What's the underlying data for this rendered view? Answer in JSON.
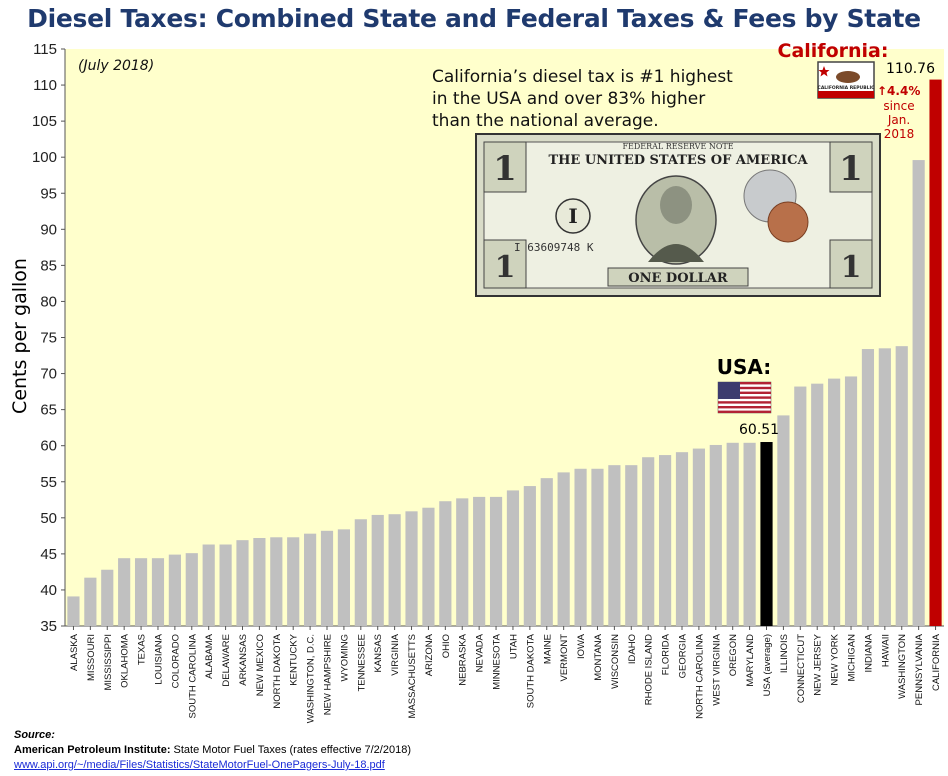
{
  "title": "Diesel Taxes: Combined State and Federal Taxes & Fees by State",
  "colors": {
    "plot_bg": "#ffffcc",
    "bar": "#c0c0c0",
    "usa_bar": "#000000",
    "california_bar": "#c00000",
    "title": "#1f3a6e",
    "ca_text": "#c00000"
  },
  "chart_data": {
    "type": "bar",
    "title": "Diesel Taxes: Combined State and Federal Taxes & Fees by State",
    "subtitle": "(July 2018)",
    "xlabel": "",
    "ylabel": "Cents per gallon",
    "ylim": [
      35,
      115
    ],
    "yticks": [
      35,
      40,
      45,
      50,
      55,
      60,
      65,
      70,
      75,
      80,
      85,
      90,
      95,
      100,
      105,
      110,
      115
    ],
    "categories": [
      "ALASKA",
      "MISSOURI",
      "MISSISSIPPI",
      "OKLAHOMA",
      "TEXAS",
      "LOUISIANA",
      "COLORADO",
      "SOUTH CAROLINA",
      "ALABAMA",
      "DELAWARE",
      "ARKANSAS",
      "NEW MEXICO",
      "NORTH DAKOTA",
      "KENTUCKY",
      "WASHINGTON, D.C.",
      "NEW HAMPSHIRE",
      "WYOMING",
      "TENNESSEE",
      "KANSAS",
      "VIRGINIA",
      "MASSACHUSETTS",
      "ARIZONA",
      "OHIO",
      "NEBRASKA",
      "NEVADA",
      "MINNESOTA",
      "UTAH",
      "SOUTH DAKOTA",
      "MAINE",
      "VERMONT",
      "IOWA",
      "MONTANA",
      "WISCONSIN",
      "IDAHO",
      "RHODE ISLAND",
      "FLORIDA",
      "GEORGIA",
      "NORTH CAROLINA",
      "WEST VIRGINIA",
      "OREGON",
      "MARYLAND",
      "USA (average)",
      "ILLINOIS",
      "CONNECTICUT",
      "NEW JERSEY",
      "NEW YORK",
      "MICHIGAN",
      "INDIANA",
      "HAWAII",
      "WASHINGTON",
      "PENNSYLVANIA",
      "CALIFORNIA"
    ],
    "values": [
      39.1,
      41.7,
      42.8,
      44.4,
      44.4,
      44.4,
      44.9,
      45.1,
      46.3,
      46.3,
      46.9,
      47.2,
      47.3,
      47.3,
      47.8,
      48.2,
      48.4,
      49.8,
      50.4,
      50.5,
      50.9,
      51.4,
      52.3,
      52.7,
      52.9,
      52.9,
      53.8,
      54.4,
      55.5,
      56.3,
      56.8,
      56.8,
      57.3,
      57.3,
      58.4,
      58.7,
      59.1,
      59.6,
      60.1,
      60.4,
      60.4,
      60.51,
      64.2,
      68.2,
      68.6,
      69.3,
      69.6,
      73.4,
      73.5,
      73.8,
      99.6,
      110.76
    ],
    "highlight": {
      "usa_label": "USA:",
      "usa_value": "60.51",
      "ca_label": "California:",
      "ca_value": "110.76"
    },
    "annotations": {
      "callout_lines": [
        "California’s diesel tax is #1 highest",
        "in the USA and over 83% higher",
        "than the national average."
      ],
      "increase": "↑4.4%",
      "since_lines": [
        "since",
        "Jan.",
        "2018"
      ]
    }
  },
  "source": {
    "label": "Source:",
    "publisher": "American Petroleum Institute:",
    "description": " State Motor Fuel Taxes (rates effective 7/2/2018)",
    "url": "www.api.org/~/media/Files/Statistics/StateMotorFuel-OnePagers-July-18.pdf"
  },
  "images": {
    "money": "one-dollar-bill-with-dime-and-penny",
    "usa_flag": "us-flag",
    "ca_flag": "california-flag",
    "ca_flag_text": "CALIFORNIA REPUBLIC"
  },
  "money_text": {
    "banner": "FEDERAL RESERVE NOTE",
    "header": "THE UNITED STATES OF AMERICA",
    "footer": "ONE DOLLAR",
    "serial": "I 63609748 K",
    "denomination": "1",
    "letter": "I"
  }
}
